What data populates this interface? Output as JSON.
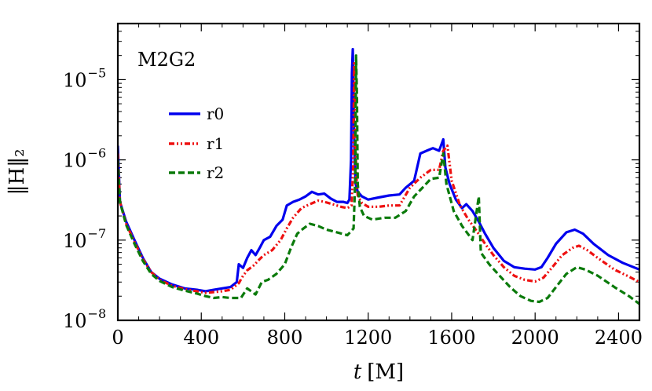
{
  "chart_data": {
    "type": "line",
    "title": "",
    "annotation": "M2G2",
    "xlabel": {
      "var": "t",
      "unit": "[M]"
    },
    "ylabel": "‖H‖₂",
    "xlim": [
      0,
      2500
    ],
    "ylim": [
      1e-08,
      5e-05
    ],
    "yscale": "log",
    "xticks": [
      0,
      400,
      800,
      1200,
      1600,
      2000,
      2400
    ],
    "xtick_labels": [
      "0",
      "400",
      "800",
      "1200",
      "1600",
      "2000",
      "2400"
    ],
    "yticks": [
      {
        "value": 1e-08,
        "base": "10",
        "exp": "−8"
      },
      {
        "value": 1e-07,
        "base": "10",
        "exp": "−7"
      },
      {
        "value": 1e-06,
        "base": "10",
        "exp": "−6"
      },
      {
        "value": 1e-05,
        "base": "10",
        "exp": "−5"
      }
    ],
    "legend_position": "upper-left",
    "series": [
      {
        "name": "r0",
        "color": "#0000ee",
        "dash": "solid",
        "points": [
          [
            0,
            1.5e-06
          ],
          [
            10,
            3e-07
          ],
          [
            40,
            1.7e-07
          ],
          [
            80,
            1e-07
          ],
          [
            120,
            6e-08
          ],
          [
            160,
            4e-08
          ],
          [
            200,
            3.3e-08
          ],
          [
            260,
            2.8e-08
          ],
          [
            320,
            2.5e-08
          ],
          [
            380,
            2.4e-08
          ],
          [
            420,
            2.3e-08
          ],
          [
            460,
            2.4e-08
          ],
          [
            500,
            2.5e-08
          ],
          [
            540,
            2.6e-08
          ],
          [
            570,
            3e-08
          ],
          [
            580,
            5e-08
          ],
          [
            600,
            4.5e-08
          ],
          [
            620,
            6e-08
          ],
          [
            640,
            7.5e-08
          ],
          [
            660,
            6.5e-08
          ],
          [
            680,
            8e-08
          ],
          [
            700,
            1e-07
          ],
          [
            730,
            1.1e-07
          ],
          [
            760,
            1.5e-07
          ],
          [
            790,
            1.8e-07
          ],
          [
            810,
            2.7e-07
          ],
          [
            840,
            3e-07
          ],
          [
            870,
            3.2e-07
          ],
          [
            900,
            3.5e-07
          ],
          [
            930,
            4e-07
          ],
          [
            960,
            3.7e-07
          ],
          [
            990,
            3.8e-07
          ],
          [
            1020,
            3.3e-07
          ],
          [
            1050,
            3e-07
          ],
          [
            1080,
            3e-07
          ],
          [
            1100,
            2.9e-07
          ],
          [
            1110,
            3.2e-07
          ],
          [
            1118,
            1e-06
          ],
          [
            1122,
            1.2e-05
          ],
          [
            1126,
            2.4e-05
          ],
          [
            1130,
            5e-06
          ],
          [
            1135,
            1e-06
          ],
          [
            1140,
            5e-07
          ],
          [
            1150,
            4e-07
          ],
          [
            1170,
            3.5e-07
          ],
          [
            1200,
            3.2e-07
          ],
          [
            1250,
            3.4e-07
          ],
          [
            1300,
            3.6e-07
          ],
          [
            1350,
            3.7e-07
          ],
          [
            1380,
            4.5e-07
          ],
          [
            1420,
            5.5e-07
          ],
          [
            1450,
            1.2e-06
          ],
          [
            1480,
            1.3e-06
          ],
          [
            1510,
            1.4e-06
          ],
          [
            1540,
            1.3e-06
          ],
          [
            1560,
            1.8e-06
          ],
          [
            1570,
            8e-07
          ],
          [
            1590,
            5e-07
          ],
          [
            1620,
            3.2e-07
          ],
          [
            1650,
            2.5e-07
          ],
          [
            1670,
            2.8e-07
          ],
          [
            1700,
            2.3e-07
          ],
          [
            1730,
            1.7e-07
          ],
          [
            1760,
            1.2e-07
          ],
          [
            1800,
            8e-08
          ],
          [
            1850,
            5.5e-08
          ],
          [
            1900,
            4.6e-08
          ],
          [
            1950,
            4.4e-08
          ],
          [
            2000,
            4.3e-08
          ],
          [
            2030,
            4.6e-08
          ],
          [
            2060,
            6e-08
          ],
          [
            2100,
            9e-08
          ],
          [
            2150,
            1.25e-07
          ],
          [
            2190,
            1.35e-07
          ],
          [
            2230,
            1.2e-07
          ],
          [
            2280,
            9e-08
          ],
          [
            2350,
            6.5e-08
          ],
          [
            2420,
            5.2e-08
          ],
          [
            2500,
            4.3e-08
          ]
        ]
      },
      {
        "name": "r1",
        "color": "#ee1111",
        "dash": "dashdot",
        "points": [
          [
            0,
            1.2e-06
          ],
          [
            10,
            3e-07
          ],
          [
            40,
            1.6e-07
          ],
          [
            80,
            9.5e-08
          ],
          [
            120,
            5.8e-08
          ],
          [
            160,
            4e-08
          ],
          [
            200,
            3.2e-08
          ],
          [
            260,
            2.7e-08
          ],
          [
            320,
            2.45e-08
          ],
          [
            380,
            2.3e-08
          ],
          [
            420,
            2.2e-08
          ],
          [
            460,
            2.25e-08
          ],
          [
            500,
            2.3e-08
          ],
          [
            540,
            2.4e-08
          ],
          [
            580,
            2.9e-08
          ],
          [
            600,
            3.6e-08
          ],
          [
            620,
            4.2e-08
          ],
          [
            650,
            4.8e-08
          ],
          [
            680,
            5.8e-08
          ],
          [
            700,
            6.5e-08
          ],
          [
            740,
            7.5e-08
          ],
          [
            780,
            1e-07
          ],
          [
            810,
            1.4e-07
          ],
          [
            840,
            1.9e-07
          ],
          [
            880,
            2.5e-07
          ],
          [
            920,
            2.8e-07
          ],
          [
            960,
            3.1e-07
          ],
          [
            990,
            3e-07
          ],
          [
            1030,
            2.8e-07
          ],
          [
            1070,
            2.6e-07
          ],
          [
            1100,
            2.5e-07
          ],
          [
            1120,
            2.7e-07
          ],
          [
            1128,
            8e-07
          ],
          [
            1133,
            1.6e-05
          ],
          [
            1137,
            6e-06
          ],
          [
            1142,
            7e-07
          ],
          [
            1150,
            3.6e-07
          ],
          [
            1170,
            2.9e-07
          ],
          [
            1200,
            2.6e-07
          ],
          [
            1250,
            2.6e-07
          ],
          [
            1300,
            2.7e-07
          ],
          [
            1350,
            2.7e-07
          ],
          [
            1400,
            4.5e-07
          ],
          [
            1450,
            6e-07
          ],
          [
            1500,
            7.5e-07
          ],
          [
            1540,
            7.5e-07
          ],
          [
            1560,
            1.3e-06
          ],
          [
            1580,
            1.5e-06
          ],
          [
            1600,
            5.5e-07
          ],
          [
            1640,
            2.7e-07
          ],
          [
            1680,
            1.8e-07
          ],
          [
            1720,
            1.3e-07
          ],
          [
            1760,
            9e-08
          ],
          [
            1800,
            6.5e-08
          ],
          [
            1850,
            4.6e-08
          ],
          [
            1900,
            3.6e-08
          ],
          [
            1950,
            3.2e-08
          ],
          [
            2000,
            3.05e-08
          ],
          [
            2040,
            3.4e-08
          ],
          [
            2080,
            4.5e-08
          ],
          [
            2130,
            6.5e-08
          ],
          [
            2180,
            8e-08
          ],
          [
            2210,
            8.5e-08
          ],
          [
            2250,
            7.5e-08
          ],
          [
            2300,
            6e-08
          ],
          [
            2380,
            4.3e-08
          ],
          [
            2450,
            3.5e-08
          ],
          [
            2500,
            3e-08
          ]
        ]
      },
      {
        "name": "r2",
        "color": "#0a7a0a",
        "dash": "dashed",
        "points": [
          [
            0,
            1e-06
          ],
          [
            10,
            3e-07
          ],
          [
            40,
            1.55e-07
          ],
          [
            80,
            9e-08
          ],
          [
            120,
            5.5e-08
          ],
          [
            160,
            3.8e-08
          ],
          [
            200,
            3.1e-08
          ],
          [
            260,
            2.6e-08
          ],
          [
            320,
            2.35e-08
          ],
          [
            380,
            2.15e-08
          ],
          [
            420,
            2e-08
          ],
          [
            460,
            1.9e-08
          ],
          [
            500,
            1.95e-08
          ],
          [
            540,
            1.9e-08
          ],
          [
            590,
            1.9e-08
          ],
          [
            620,
            2.5e-08
          ],
          [
            660,
            2.1e-08
          ],
          [
            690,
            3e-08
          ],
          [
            720,
            3.2e-08
          ],
          [
            760,
            3.8e-08
          ],
          [
            800,
            5e-08
          ],
          [
            830,
            8e-08
          ],
          [
            860,
            1.2e-07
          ],
          [
            890,
            1.4e-07
          ],
          [
            920,
            1.6e-07
          ],
          [
            960,
            1.5e-07
          ],
          [
            1000,
            1.35e-07
          ],
          [
            1050,
            1.25e-07
          ],
          [
            1100,
            1.15e-07
          ],
          [
            1130,
            1.4e-07
          ],
          [
            1138,
            6e-07
          ],
          [
            1142,
            2e-05
          ],
          [
            1146,
            6e-06
          ],
          [
            1150,
            5e-07
          ],
          [
            1160,
            2.6e-07
          ],
          [
            1180,
            2e-07
          ],
          [
            1220,
            1.8e-07
          ],
          [
            1280,
            1.9e-07
          ],
          [
            1330,
            1.9e-07
          ],
          [
            1380,
            2.3e-07
          ],
          [
            1420,
            3.5e-07
          ],
          [
            1460,
            4.5e-07
          ],
          [
            1500,
            5.8e-07
          ],
          [
            1540,
            6e-07
          ],
          [
            1560,
            1.2e-06
          ],
          [
            1575,
            5e-07
          ],
          [
            1610,
            2.3e-07
          ],
          [
            1650,
            1.5e-07
          ],
          [
            1700,
            1e-07
          ],
          [
            1730,
            3.5e-07
          ],
          [
            1740,
            7e-08
          ],
          [
            1780,
            5e-08
          ],
          [
            1830,
            3.6e-08
          ],
          [
            1880,
            2.6e-08
          ],
          [
            1930,
            2e-08
          ],
          [
            1980,
            1.75e-08
          ],
          [
            2020,
            1.7e-08
          ],
          [
            2060,
            1.9e-08
          ],
          [
            2100,
            2.6e-08
          ],
          [
            2150,
            3.8e-08
          ],
          [
            2200,
            4.6e-08
          ],
          [
            2240,
            4.3e-08
          ],
          [
            2300,
            3.6e-08
          ],
          [
            2380,
            2.6e-08
          ],
          [
            2450,
            2e-08
          ],
          [
            2500,
            1.6e-08
          ]
        ]
      }
    ]
  }
}
